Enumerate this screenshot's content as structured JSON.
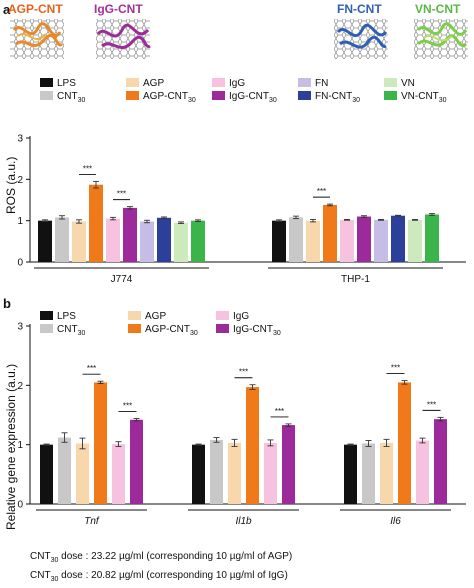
{
  "figure": {
    "panel_a_label": "a",
    "panel_b_label": "b",
    "protein_labels": [
      {
        "text": "AGP-CNT",
        "color": "#e8621c"
      },
      {
        "text": "IgG-CNT",
        "color": "#a62f9b"
      },
      {
        "text": "FN-CNT",
        "color": "#2f5fb4"
      },
      {
        "text": "VN-CNT",
        "color": "#58b947"
      }
    ],
    "notes": [
      {
        "pre": "CNT",
        "sub": "30",
        "post": " dose : 23.22 µg/ml (corresponding 10 µg/ml of AGP)"
      },
      {
        "pre": "CNT",
        "sub": "30",
        "post": " dose : 20.82 µg/ml (corresponding 10 µg/ml of IgG)"
      }
    ]
  },
  "colors": {
    "LPS": "#111111",
    "CNT30": "#c8c8c8",
    "AGP": "#f9d7ad",
    "AGP-CNT30": "#f07a1a",
    "IgG": "#f6c2e0",
    "IgG-CNT30": "#9c2a9b",
    "FN": "#c5bde6",
    "FN-CNT30": "#2b3f9b",
    "VN": "#cdeabc",
    "VN-CNT30": "#3bb44a"
  },
  "chart_data": [
    {
      "type": "bar",
      "panel": "a",
      "ylabel": "ROS (a.u.)",
      "ylim": [
        0,
        3
      ],
      "yticks": [
        "0",
        "1",
        "2",
        "3"
      ],
      "groups": [
        "J774",
        "THP-1"
      ],
      "legend": [
        {
          "key": "LPS",
          "label": "LPS",
          "sub": ""
        },
        {
          "key": "AGP",
          "label": "AGP",
          "sub": ""
        },
        {
          "key": "IgG",
          "label": "IgG",
          "sub": ""
        },
        {
          "key": "FN",
          "label": "FN",
          "sub": ""
        },
        {
          "key": "VN",
          "label": "VN",
          "sub": ""
        },
        {
          "key": "CNT30",
          "label": "CNT",
          "sub": "30"
        },
        {
          "key": "AGP-CNT30",
          "label": "AGP-CNT",
          "sub": "30"
        },
        {
          "key": "IgG-CNT30",
          "label": "IgG-CNT",
          "sub": "30"
        },
        {
          "key": "FN-CNT30",
          "label": "FN-CNT",
          "sub": "30"
        },
        {
          "key": "VN-CNT30",
          "label": "VN-CNT",
          "sub": "30"
        }
      ],
      "series": [
        {
          "key": "LPS",
          "values": [
            1.0,
            1.0
          ],
          "errors": [
            0.02,
            0.02
          ]
        },
        {
          "key": "CNT30",
          "values": [
            1.08,
            1.08
          ],
          "errors": [
            0.04,
            0.03
          ]
        },
        {
          "key": "AGP",
          "values": [
            0.98,
            1.0
          ],
          "errors": [
            0.04,
            0.03
          ]
        },
        {
          "key": "AGP-CNT30",
          "values": [
            1.87,
            1.38
          ],
          "errors": [
            0.08,
            0.02
          ]
        },
        {
          "key": "IgG",
          "values": [
            1.05,
            1.02
          ],
          "errors": [
            0.03,
            0.01
          ]
        },
        {
          "key": "IgG-CNT30",
          "values": [
            1.31,
            1.1
          ],
          "errors": [
            0.03,
            0.02
          ]
        },
        {
          "key": "FN",
          "values": [
            0.98,
            1.02
          ],
          "errors": [
            0.03,
            0.01
          ]
        },
        {
          "key": "FN-CNT30",
          "values": [
            1.07,
            1.12
          ],
          "errors": [
            0.02,
            0.01
          ]
        },
        {
          "key": "VN",
          "values": [
            0.95,
            1.02
          ],
          "errors": [
            0.02,
            0.01
          ]
        },
        {
          "key": "VN-CNT30",
          "values": [
            1.0,
            1.15
          ],
          "errors": [
            0.02,
            0.02
          ]
        }
      ],
      "significance": [
        {
          "group": 0,
          "from": "AGP",
          "to": "AGP-CNT30",
          "label": "***"
        },
        {
          "group": 0,
          "from": "IgG",
          "to": "IgG-CNT30",
          "label": "***"
        },
        {
          "group": 1,
          "from": "AGP",
          "to": "AGP-CNT30",
          "label": "***"
        }
      ]
    },
    {
      "type": "bar",
      "panel": "b",
      "ylabel": "Relative gene expression (a.u.)",
      "ylim": [
        0,
        3
      ],
      "yticks": [
        "0",
        "1",
        "2",
        "3"
      ],
      "groups": [
        "Tnf",
        "Il1b",
        "Il6"
      ],
      "legend": [
        {
          "key": "LPS",
          "label": "LPS",
          "sub": ""
        },
        {
          "key": "AGP",
          "label": "AGP",
          "sub": ""
        },
        {
          "key": "IgG",
          "label": "IgG",
          "sub": ""
        },
        {
          "key": "CNT30",
          "label": "CNT",
          "sub": "30"
        },
        {
          "key": "AGP-CNT30",
          "label": "AGP-CNT",
          "sub": "30"
        },
        {
          "key": "IgG-CNT30",
          "label": "IgG-CNT",
          "sub": "30"
        }
      ],
      "series": [
        {
          "key": "LPS",
          "values": [
            1.0,
            1.0,
            1.0
          ],
          "errors": [
            0.01,
            0.01,
            0.01
          ]
        },
        {
          "key": "CNT30",
          "values": [
            1.12,
            1.08,
            1.02
          ],
          "errors": [
            0.08,
            0.04,
            0.05
          ]
        },
        {
          "key": "AGP",
          "values": [
            1.02,
            1.03,
            1.03
          ],
          "errors": [
            0.09,
            0.06,
            0.06
          ]
        },
        {
          "key": "AGP-CNT30",
          "values": [
            2.05,
            1.97,
            2.05
          ],
          "errors": [
            0.02,
            0.04,
            0.03
          ]
        },
        {
          "key": "IgG",
          "values": [
            1.01,
            1.03,
            1.07
          ],
          "errors": [
            0.04,
            0.05,
            0.04
          ]
        },
        {
          "key": "IgG-CNT30",
          "values": [
            1.42,
            1.33,
            1.43
          ],
          "errors": [
            0.02,
            0.02,
            0.03
          ]
        }
      ],
      "significance": [
        {
          "group": 0,
          "from": "AGP",
          "to": "AGP-CNT30",
          "label": "***"
        },
        {
          "group": 0,
          "from": "IgG",
          "to": "IgG-CNT30",
          "label": "***"
        },
        {
          "group": 1,
          "from": "AGP",
          "to": "AGP-CNT30",
          "label": "***"
        },
        {
          "group": 1,
          "from": "IgG",
          "to": "IgG-CNT30",
          "label": "***"
        },
        {
          "group": 2,
          "from": "AGP",
          "to": "AGP-CNT30",
          "label": "***"
        },
        {
          "group": 2,
          "from": "IgG",
          "to": "IgG-CNT30",
          "label": "***"
        }
      ]
    }
  ]
}
